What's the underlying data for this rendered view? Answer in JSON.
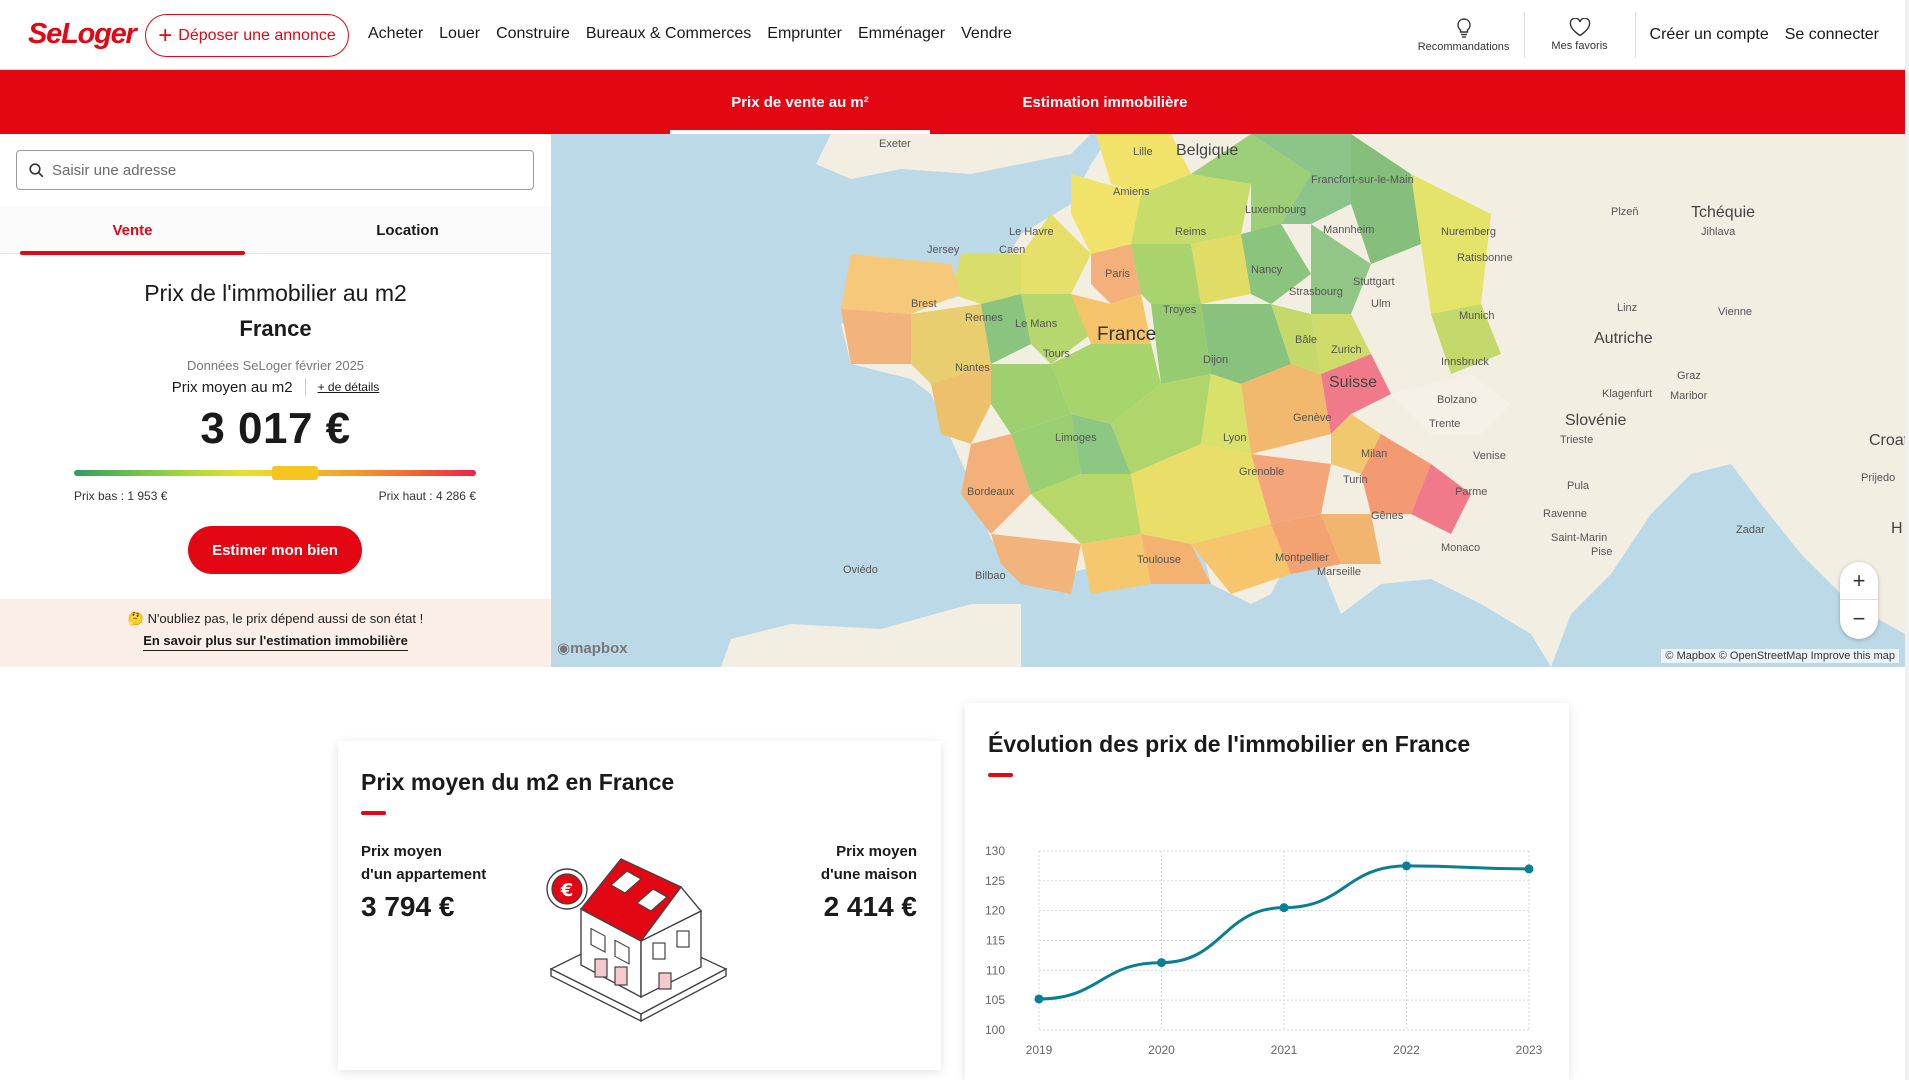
{
  "header": {
    "logo": "SeLoger",
    "deposer_label": "Déposer une annonce",
    "nav": [
      "Acheter",
      "Louer",
      "Construire",
      "Bureaux & Commerces",
      "Emprunter",
      "Emménager",
      "Vendre"
    ],
    "recommandations": "Recommandations",
    "favoris": "Mes favoris",
    "creer_compte": "Créer un compte",
    "connecter": "Se connecter"
  },
  "redbar": {
    "tab1": "Prix de vente au m²",
    "tab2": "Estimation immobilière"
  },
  "panel": {
    "search_placeholder": "Saisir une adresse",
    "tab_vente": "Vente",
    "tab_location": "Location",
    "title": "Prix de l'immobilier au m2",
    "location": "France",
    "source": "Données SeLoger février 2025",
    "avg_label": "Prix moyen au m2",
    "details": "+ de détails",
    "avg_value": "3 017 €",
    "gauge_level": 0.55,
    "low": "Prix bas : 1 953 €",
    "high": "Prix haut : 4 286 €",
    "estimer": "Estimer mon bien",
    "tip_text": "🤔 N'oubliez pas, le prix dépend aussi de son état !",
    "tip_link": "En savoir plus sur l'estimation immobilière"
  },
  "map": {
    "labels": {
      "exeter": "Exeter",
      "lille": "Lille",
      "belgique": "Belgique",
      "frankfurt": "Francfort-sur-le-Main",
      "amiens": "Amiens",
      "luxembourg": "Luxembourg",
      "le_havre": "Le Havre",
      "caen": "Caen",
      "jersey": "Jersey",
      "reims": "Reims",
      "mannheim": "Mannheim",
      "nuremberg": "Nuremberg",
      "plzen": "Plzeň",
      "tcheque": "Tchéquie",
      "jihlava": "Jihlava",
      "paris": "Paris",
      "nancy": "Nancy",
      "ratisbonne": "Ratisbonne",
      "stuttgart": "Stuttgart",
      "strasbourg": "Strasbourg",
      "brest": "Brest",
      "rennes": "Rennes",
      "le_mans": "Le Mans",
      "troyes": "Troyes",
      "ulm": "Ulm",
      "munich": "Munich",
      "linz": "Linz",
      "vienne": "Vienne",
      "france": "France",
      "bale": "Bâle",
      "zurich": "Zurich",
      "autriche": "Autriche",
      "tours": "Tours",
      "dijon": "Dijon",
      "innsbruck": "Innsbruck",
      "nantes": "Nantes",
      "suisse": "Suisse",
      "graz": "Graz",
      "bolzano": "Bolzano",
      "klagenfurt": "Klagenfurt",
      "maribor": "Maribor",
      "geneve": "Genève",
      "trente": "Trente",
      "slovenie": "Slovénie",
      "limoges": "Limoges",
      "lyon": "Lyon",
      "milan": "Milan",
      "venise": "Venise",
      "trieste": "Trieste",
      "croati": "Croati",
      "grenoble": "Grenoble",
      "turin": "Turin",
      "bordeaux": "Bordeaux",
      "pula": "Pula",
      "prijedo": "Prijedo",
      "parme": "Parme",
      "genes": "Gênes",
      "ravenne": "Ravenne",
      "zadar": "Zadar",
      "saint_marin": "Saint-Marin",
      "monaco": "Monaco",
      "toulouse": "Toulouse",
      "montpellier": "Montpellier",
      "oviedo": "Oviédo",
      "bilbao": "Bilbao",
      "marseille": "Marseille",
      "pise": "Pise",
      "h": "H"
    },
    "mapbox": "mapbox",
    "attribution": "© Mapbox © OpenStreetMap Improve this map"
  },
  "card1": {
    "title": "Prix moyen du m2 en France",
    "apt_line1": "Prix moyen",
    "apt_line2": "d'un appartement",
    "apt_value": "3 794 €",
    "mai_line1": "Prix moyen",
    "mai_line2": "d'une maison",
    "mai_value": "2 414 €"
  },
  "card2": {
    "title": "Évolution des prix de l'immobilier en France"
  },
  "colors": {
    "brand": "#e30613",
    "line": "#0a7f94"
  },
  "chart_data": {
    "type": "line",
    "title": "Évolution des prix de l'immobilier en France",
    "x": [
      "2019",
      "2020",
      "2021",
      "2022",
      "2023"
    ],
    "series": [
      {
        "values": [
          105.2,
          111.3,
          120.5,
          127.5,
          127.0
        ]
      }
    ],
    "ylim": [
      100,
      130
    ],
    "yticks": [
      100,
      105,
      110,
      115,
      120,
      125,
      130
    ],
    "grid": true
  }
}
